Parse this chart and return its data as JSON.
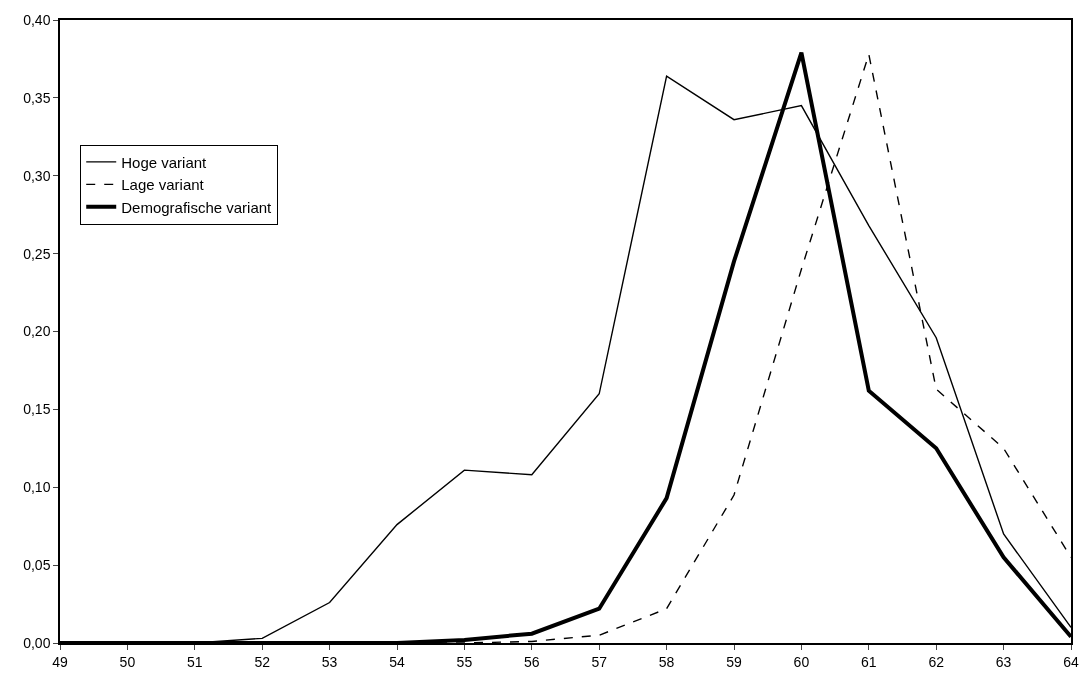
{
  "chart_data": {
    "type": "line",
    "x": [
      49,
      50,
      51,
      52,
      53,
      54,
      55,
      56,
      57,
      58,
      59,
      60,
      61,
      62,
      63,
      64
    ],
    "series": [
      {
        "name": "Hoge variant",
        "color": "#000000",
        "line_style": "solid",
        "values": [
          0,
          0,
          0,
          0.003,
          0.026,
          0.076,
          0.111,
          0.108,
          0.16,
          0.364,
          0.336,
          0.345,
          0.268,
          0.196,
          0.07,
          0.01
        ]
      },
      {
        "name": "Lage variant",
        "color": "#000000",
        "line_style": "dashed",
        "values": [
          0,
          0,
          0,
          0,
          0,
          0,
          0,
          0.001,
          0.005,
          0.022,
          0.095,
          0.24,
          0.378,
          0.163,
          0.125,
          0.055
        ]
      },
      {
        "name": "Demografische variant",
        "color": "#000000",
        "line_style": "solid",
        "values": [
          0,
          0,
          0,
          0,
          0,
          0,
          0.002,
          0.006,
          0.022,
          0.093,
          0.245,
          0.379,
          0.162,
          0.125,
          0.055,
          0.004
        ]
      }
    ],
    "xlim": [
      49,
      64
    ],
    "xticks": [
      49,
      50,
      51,
      52,
      53,
      54,
      55,
      56,
      57,
      58,
      59,
      60,
      61,
      62,
      63,
      64
    ],
    "ylim": [
      0,
      0.4
    ],
    "yticks": [
      {
        "value": 0,
        "label": "0,00"
      },
      {
        "value": 0.05,
        "label": "0,05"
      },
      {
        "value": 0.1,
        "label": "0,10"
      },
      {
        "value": 0.15,
        "label": "0,15"
      },
      {
        "value": 0.2,
        "label": "0,20"
      },
      {
        "value": 0.25,
        "label": "0,25"
      },
      {
        "value": 0.3,
        "label": "0,30"
      },
      {
        "value": 0.35,
        "label": "0,35"
      },
      {
        "value": 0.4,
        "label": "0,40"
      }
    ],
    "grid": false,
    "legend": "top left",
    "marker": "none"
  }
}
